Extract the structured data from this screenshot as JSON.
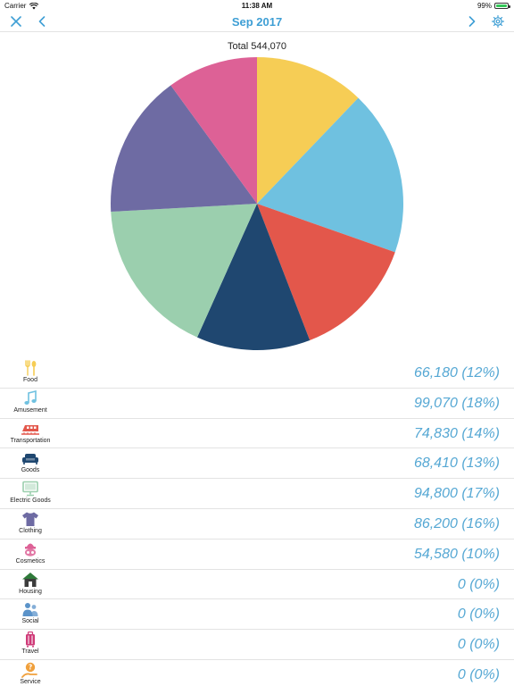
{
  "status_bar": {
    "carrier": "Carrier",
    "time": "11:38 AM",
    "battery": "99%",
    "battery_level": 0.99,
    "battery_color": "#35c759"
  },
  "nav": {
    "title": "Sep 2017",
    "accent_color": "#3f9fd5",
    "close_icon": "close-icon",
    "prev_icon": "chevron-left-icon",
    "next_icon": "chevron-right-icon",
    "settings_icon": "gear-icon"
  },
  "chart_data": {
    "type": "pie",
    "title": "Total 544,070",
    "categories": [
      "Food",
      "Amusement",
      "Transportation",
      "Goods",
      "Electric Goods",
      "Clothing",
      "Cosmetics"
    ],
    "values": [
      66180,
      99070,
      74830,
      68410,
      94800,
      86200,
      54580
    ],
    "colors": [
      "#f6cd55",
      "#6fc1e0",
      "#e3574b",
      "#1f4770",
      "#9bcfae",
      "#6e6ba3",
      "#dd6196"
    ],
    "start": "12 o'clock",
    "direction": "clockwise"
  },
  "categories": [
    {
      "label": "Food",
      "amount": "66,180 (12%)",
      "icon": "fork-spoon-icon",
      "color": "#f6cd55"
    },
    {
      "label": "Amusement",
      "amount": "99,070 (18%)",
      "icon": "music-note-icon",
      "color": "#6fc1e0"
    },
    {
      "label": "Transportation",
      "amount": "74,830 (14%)",
      "icon": "train-icon",
      "color": "#e3574b"
    },
    {
      "label": "Goods",
      "amount": "68,410 (13%)",
      "icon": "sofa-icon",
      "color": "#1f4770"
    },
    {
      "label": "Electric Goods",
      "amount": "94,800 (17%)",
      "icon": "monitor-icon",
      "color": "#9bcfae"
    },
    {
      "label": "Clothing",
      "amount": "86,200 (16%)",
      "icon": "shirt-icon",
      "color": "#6e6ba3"
    },
    {
      "label": "Cosmetics",
      "amount": "54,580 (10%)",
      "icon": "cosmetics-icon",
      "color": "#dd6196"
    },
    {
      "label": "Housing",
      "amount": "0 (0%)",
      "icon": "house-icon",
      "color": "#2f7a3a"
    },
    {
      "label": "Social",
      "amount": "0 (0%)",
      "icon": "people-icon",
      "color": "#5b93c9"
    },
    {
      "label": "Travel",
      "amount": "0 (0%)",
      "icon": "suitcase-icon",
      "color": "#cf3a78"
    },
    {
      "label": "Service",
      "amount": "0 (0%)",
      "icon": "service-icon",
      "color": "#f0a03c"
    }
  ]
}
